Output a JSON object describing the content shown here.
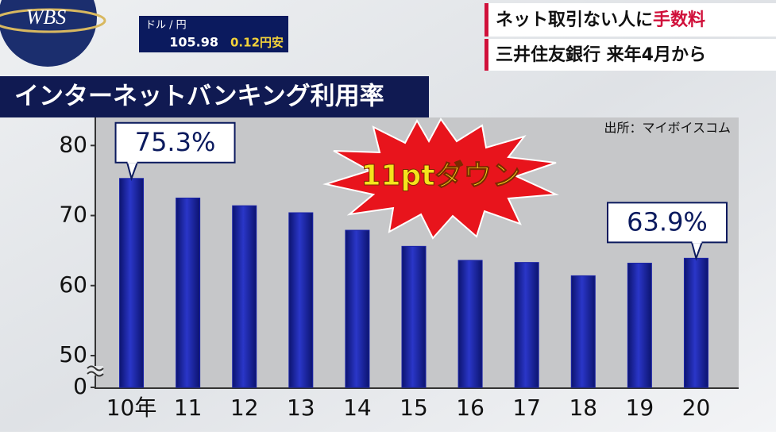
{
  "header": {
    "logo": "WBS",
    "fx_label": "ドル / 円",
    "fx_rate": "105.98",
    "fx_change": "0.12円安",
    "headline": "ネット取引ない人に",
    "headline_highlight": "手数料",
    "subheadline": "三井住友銀行 来年4月から"
  },
  "chart_data": {
    "type": "bar",
    "title": "インターネットバンキング利用率",
    "source": "出所：マイボイスコム",
    "annotation": "11ptダウン",
    "categories": [
      "10年",
      "11",
      "12",
      "13",
      "14",
      "15",
      "16",
      "17",
      "18",
      "19",
      "20"
    ],
    "values": [
      75.3,
      72.5,
      71.4,
      70.4,
      67.9,
      65.6,
      63.6,
      63.3,
      61.4,
      63.2,
      63.9
    ],
    "value_labels": [
      "75.3%",
      null,
      null,
      null,
      null,
      null,
      null,
      null,
      null,
      null,
      "63.9%"
    ],
    "color": "#1a23a8",
    "ylim": [
      0,
      84
    ],
    "yticks": [
      0,
      50,
      60,
      70,
      80
    ],
    "axis_break": true,
    "grid": false
  }
}
